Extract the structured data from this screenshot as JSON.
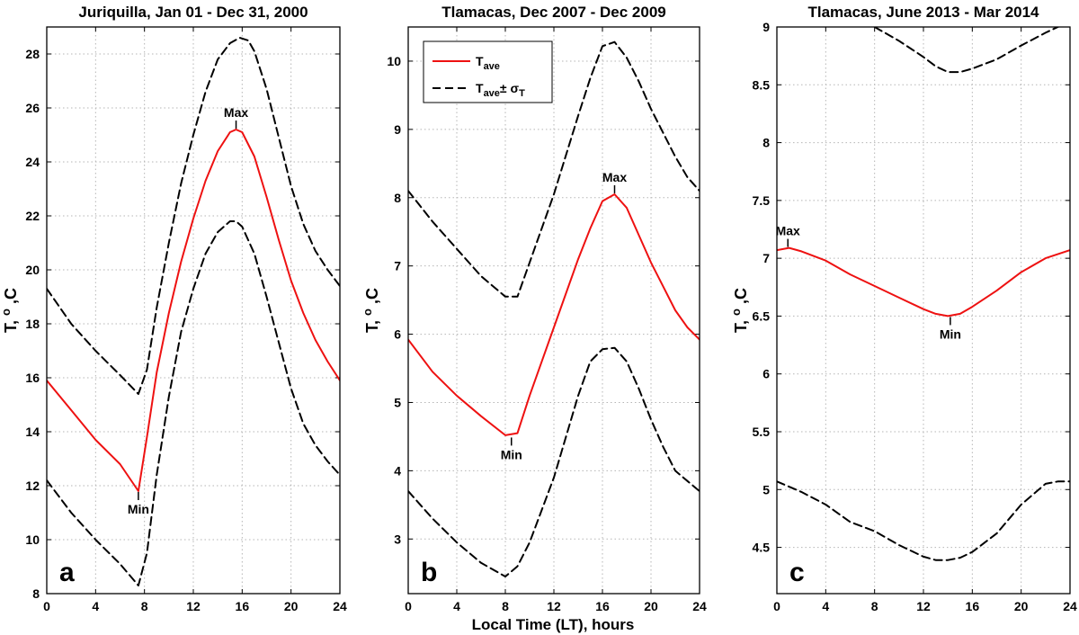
{
  "x_axis_label": "Local Time (LT), hours",
  "colors": {
    "average": "#ee1111",
    "sigma": "#000000"
  },
  "legend": {
    "ave_main": "T",
    "ave_sub": "ave",
    "sig_main": "T",
    "sig_sub": "ave",
    "sig_pm": "± σ",
    "sig_sub2": "T"
  },
  "chart_data": [
    {
      "type": "line",
      "panel_label": "a",
      "title": "Juriquilla, Jan 01 - Dec 31, 2000",
      "ylabel_main": "T,",
      "ylabel_sup": "o",
      "ylabel_end": ",C",
      "xlim": [
        0,
        24
      ],
      "ylim": [
        8,
        29
      ],
      "xticks": [
        0,
        4,
        8,
        12,
        16,
        20,
        24
      ],
      "yticks": [
        8,
        10,
        12,
        14,
        16,
        18,
        20,
        22,
        24,
        26,
        28
      ],
      "grid": true,
      "series": [
        {
          "role": "average",
          "x": [
            0,
            2,
            4,
            6,
            7.5,
            8.2,
            9,
            10,
            11,
            12,
            13,
            14,
            15,
            15.5,
            16,
            17,
            18,
            19,
            20,
            21,
            22,
            23,
            24
          ],
          "y": [
            15.9,
            14.8,
            13.7,
            12.8,
            11.8,
            13.8,
            16.2,
            18.4,
            20.3,
            21.9,
            23.3,
            24.4,
            25.1,
            25.2,
            25.1,
            24.2,
            22.7,
            21.1,
            19.6,
            18.4,
            17.4,
            16.6,
            15.9
          ]
        },
        {
          "role": "upper",
          "x": [
            0,
            2,
            4,
            6,
            7.5,
            8.2,
            9,
            10,
            11,
            12,
            13,
            14,
            15,
            15.8,
            16.5,
            17,
            18,
            19,
            20,
            21,
            22,
            23,
            24
          ],
          "y": [
            19.3,
            18.0,
            17.0,
            16.1,
            15.4,
            16.3,
            18.6,
            21.0,
            23.2,
            25.0,
            26.6,
            27.8,
            28.4,
            28.6,
            28.5,
            28.1,
            26.7,
            24.9,
            23.1,
            21.7,
            20.7,
            20.0,
            19.4
          ]
        },
        {
          "role": "lower",
          "x": [
            0,
            2,
            4,
            6,
            7.5,
            8.2,
            9,
            10,
            11,
            12,
            13,
            14,
            15,
            15.5,
            16,
            17,
            18,
            19,
            20,
            21,
            22,
            23,
            24
          ],
          "y": [
            12.2,
            11.0,
            10.0,
            9.1,
            8.3,
            9.5,
            12.4,
            15.3,
            17.7,
            19.3,
            20.6,
            21.4,
            21.8,
            21.8,
            21.6,
            20.6,
            19.0,
            17.3,
            15.6,
            14.3,
            13.5,
            12.9,
            12.4
          ]
        }
      ],
      "annotations": [
        {
          "text": "Max",
          "x": 15.5,
          "y": 25.2,
          "pos": "above"
        },
        {
          "text": "Min",
          "x": 7.5,
          "y": 11.8,
          "pos": "below"
        }
      ]
    },
    {
      "type": "line",
      "panel_label": "b",
      "title": "Tlamacas, Dec 2007 - Dec 2009",
      "ylabel_main": "T,",
      "ylabel_sup": "o",
      "ylabel_end": ",C",
      "xlim": [
        0,
        24
      ],
      "ylim": [
        2.2,
        10.5
      ],
      "xticks": [
        0,
        4,
        8,
        12,
        16,
        20,
        24
      ],
      "yticks": [
        3,
        4,
        5,
        6,
        7,
        8,
        9,
        10
      ],
      "grid": true,
      "legend_position": "top-left",
      "series": [
        {
          "role": "average",
          "x": [
            0,
            2,
            4,
            6,
            8,
            9,
            10,
            12,
            14,
            15,
            16,
            17,
            18,
            19,
            20,
            21,
            22,
            23,
            24
          ],
          "y": [
            5.92,
            5.45,
            5.1,
            4.8,
            4.52,
            4.55,
            5.1,
            6.1,
            7.1,
            7.55,
            7.95,
            8.05,
            7.85,
            7.45,
            7.05,
            6.7,
            6.35,
            6.1,
            5.92
          ]
        },
        {
          "role": "upper",
          "x": [
            0,
            2,
            4,
            6,
            8,
            9,
            10,
            12,
            14,
            15,
            16,
            17,
            18,
            19,
            20,
            21,
            22,
            23,
            24
          ],
          "y": [
            8.1,
            7.65,
            7.25,
            6.85,
            6.55,
            6.55,
            7.05,
            8.05,
            9.2,
            9.75,
            10.22,
            10.28,
            10.05,
            9.7,
            9.3,
            8.95,
            8.6,
            8.3,
            8.1
          ]
        },
        {
          "role": "lower",
          "x": [
            0,
            2,
            4,
            6,
            8,
            9,
            10,
            12,
            14,
            15,
            16,
            17,
            18,
            19,
            20,
            21,
            22,
            23,
            24
          ],
          "y": [
            3.7,
            3.3,
            2.95,
            2.65,
            2.45,
            2.6,
            2.95,
            3.9,
            5.1,
            5.6,
            5.78,
            5.8,
            5.6,
            5.2,
            4.75,
            4.35,
            4.0,
            3.85,
            3.7
          ]
        }
      ],
      "annotations": [
        {
          "text": "Max",
          "x": 17,
          "y": 8.05,
          "pos": "above"
        },
        {
          "text": "Min",
          "x": 8.5,
          "y": 4.5,
          "pos": "below"
        }
      ]
    },
    {
      "type": "line",
      "panel_label": "c",
      "title": "Tlamacas, June 2013 - Mar 2014",
      "ylabel_main": "T,",
      "ylabel_sup": "o",
      "ylabel_end": ",C",
      "xlim": [
        0,
        24
      ],
      "ylim": [
        4.1,
        9.0
      ],
      "xticks": [
        0,
        4,
        8,
        12,
        16,
        20,
        24
      ],
      "yticks": [
        4.5,
        5,
        5.5,
        6,
        6.5,
        7,
        7.5,
        8,
        8.5,
        9
      ],
      "grid": true,
      "series": [
        {
          "role": "average",
          "x": [
            0,
            1,
            2,
            4,
            6,
            8,
            10,
            12,
            13,
            14,
            15,
            16,
            18,
            20,
            22,
            24
          ],
          "y": [
            7.07,
            7.09,
            7.06,
            6.98,
            6.86,
            6.76,
            6.66,
            6.56,
            6.52,
            6.5,
            6.52,
            6.58,
            6.72,
            6.88,
            7.0,
            7.07
          ]
        },
        {
          "role": "upper",
          "x": [
            8,
            10,
            12,
            13,
            14,
            15,
            16,
            18,
            20,
            22,
            24
          ],
          "y": [
            9.0,
            8.88,
            8.74,
            8.66,
            8.61,
            8.61,
            8.64,
            8.72,
            8.84,
            8.95,
            9.05
          ]
        },
        {
          "role": "lower",
          "x": [
            0,
            2,
            4,
            6,
            8,
            10,
            12,
            13,
            14,
            15,
            16,
            18,
            20,
            22,
            23,
            24
          ],
          "y": [
            5.07,
            4.98,
            4.87,
            4.72,
            4.64,
            4.52,
            4.42,
            4.39,
            4.39,
            4.41,
            4.46,
            4.62,
            4.87,
            5.05,
            5.07,
            5.07
          ]
        }
      ],
      "annotations": [
        {
          "text": "Max",
          "x": 0.9,
          "y": 7.09,
          "pos": "above"
        },
        {
          "text": "Min",
          "x": 14.2,
          "y": 6.5,
          "pos": "below"
        }
      ]
    }
  ]
}
